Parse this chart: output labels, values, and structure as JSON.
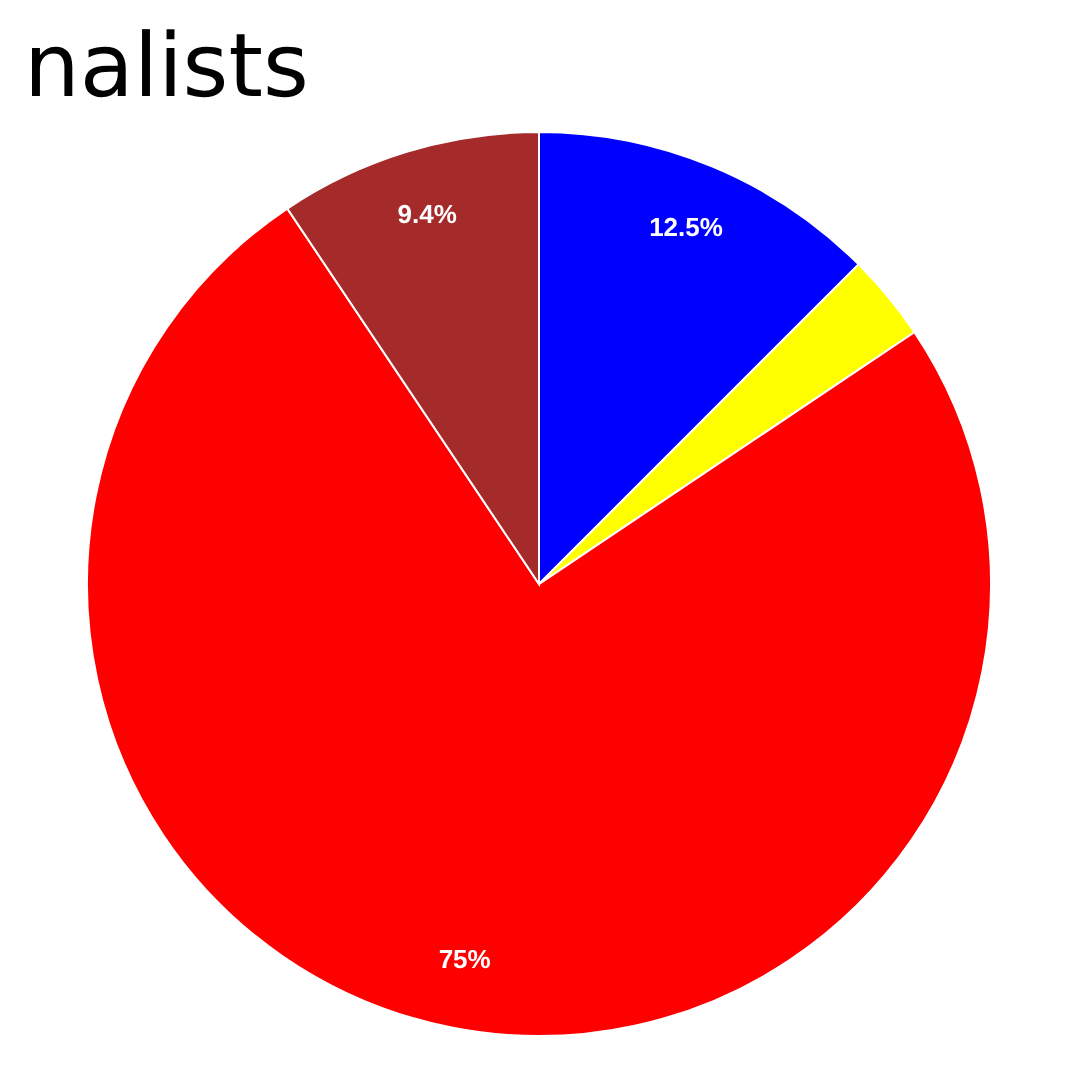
{
  "chart_data": {
    "type": "pie",
    "title": "nalists",
    "categories": [
      null,
      null,
      null,
      null
    ],
    "values": [
      12.5,
      3.1,
      75,
      9.4
    ],
    "colors": [
      "#0000ff",
      "#ffff00",
      "#ff0000",
      "#a52a2a"
    ],
    "value_labels": [
      "12.5%",
      null,
      "75%",
      "9.4%"
    ]
  }
}
